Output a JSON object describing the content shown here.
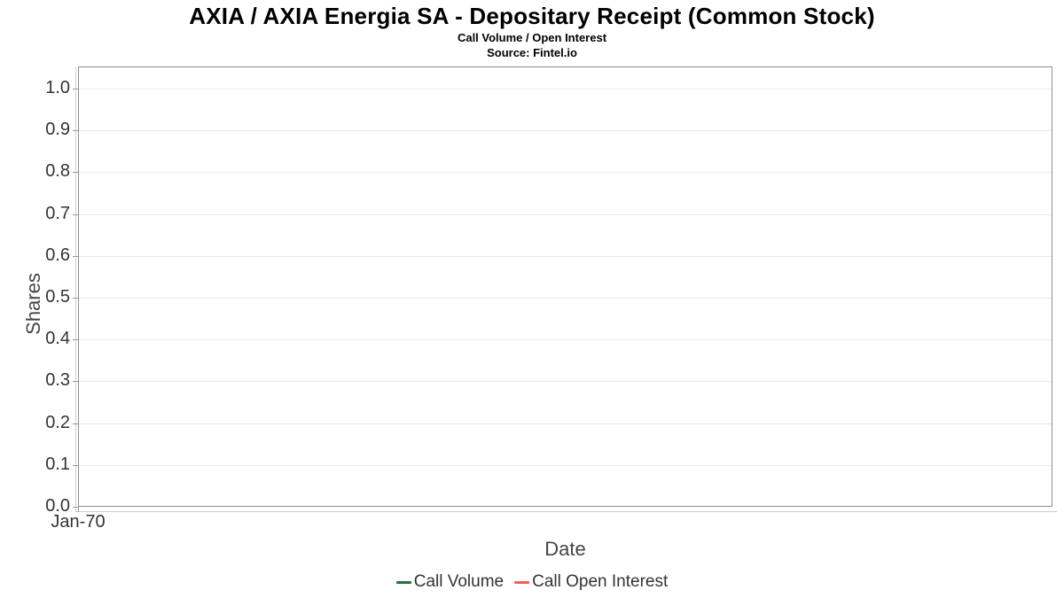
{
  "header": {
    "title": "AXIA / AXIA Energia SA - Depositary Receipt (Common Stock)",
    "subtitle": "Call Volume / Open Interest",
    "source": "Source: Fintel.io"
  },
  "chart_data": {
    "type": "line",
    "title": "AXIA / AXIA Energia SA - Depositary Receipt (Common Stock)",
    "subtitle": "Call Volume / Open Interest",
    "source": "Source: Fintel.io",
    "xlabel": "Date",
    "ylabel": "Shares",
    "x_tick_labels": [
      "Jan-70"
    ],
    "y_ticks": [
      0.0,
      0.1,
      0.2,
      0.3,
      0.4,
      0.5,
      0.6,
      0.7,
      0.8,
      0.9,
      1.0
    ],
    "ylim": [
      0.0,
      1.05
    ],
    "grid": true,
    "legend_position": "bottom",
    "series": [
      {
        "name": "Call Volume",
        "color": "#2e6c40",
        "x": [],
        "values": []
      },
      {
        "name": "Call Open Interest",
        "color": "#f75c5c",
        "x": [],
        "values": []
      }
    ]
  },
  "colors": {
    "background": "#ffffff",
    "plot_border": "#8f8f8f",
    "gridline": "#e8e8e8",
    "tick_label": "#333333",
    "axis_title": "#454545",
    "legend_text": "#333333",
    "call_volume": "#2e6c40",
    "call_open_interest": "#f75c5c"
  }
}
